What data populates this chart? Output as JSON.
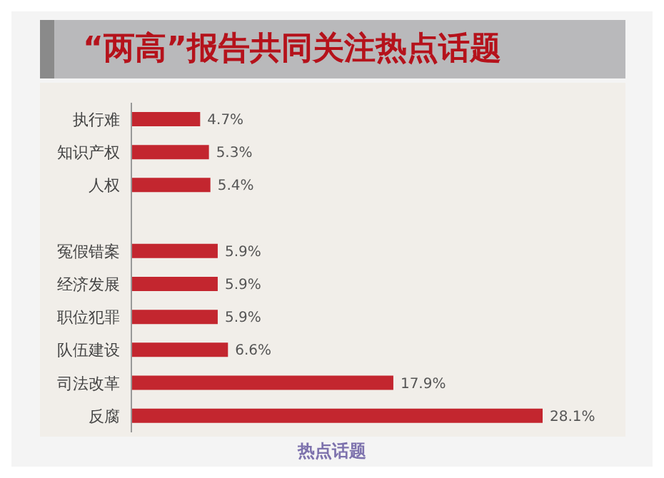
{
  "chart_data": {
    "type": "bar",
    "orientation": "horizontal",
    "title": "“两高”报告共同关注热点话题",
    "xlabel": "热点话题",
    "categories": [
      "执行难",
      "知识产权",
      "人权",
      null,
      "冤假错案",
      "经济发展",
      "职位犯罪",
      "队伍建设",
      "司法改革",
      "反腐"
    ],
    "values": [
      4.7,
      5.3,
      5.4,
      null,
      5.9,
      5.9,
      5.9,
      6.6,
      17.9,
      28.1
    ],
    "value_labels": [
      "4.7%",
      "5.3%",
      "5.4%",
      null,
      "5.9%",
      "5.9%",
      "5.9%",
      "6.6%",
      "17.9%",
      "28.1%"
    ],
    "color": "#c3262f",
    "grid": false
  }
}
